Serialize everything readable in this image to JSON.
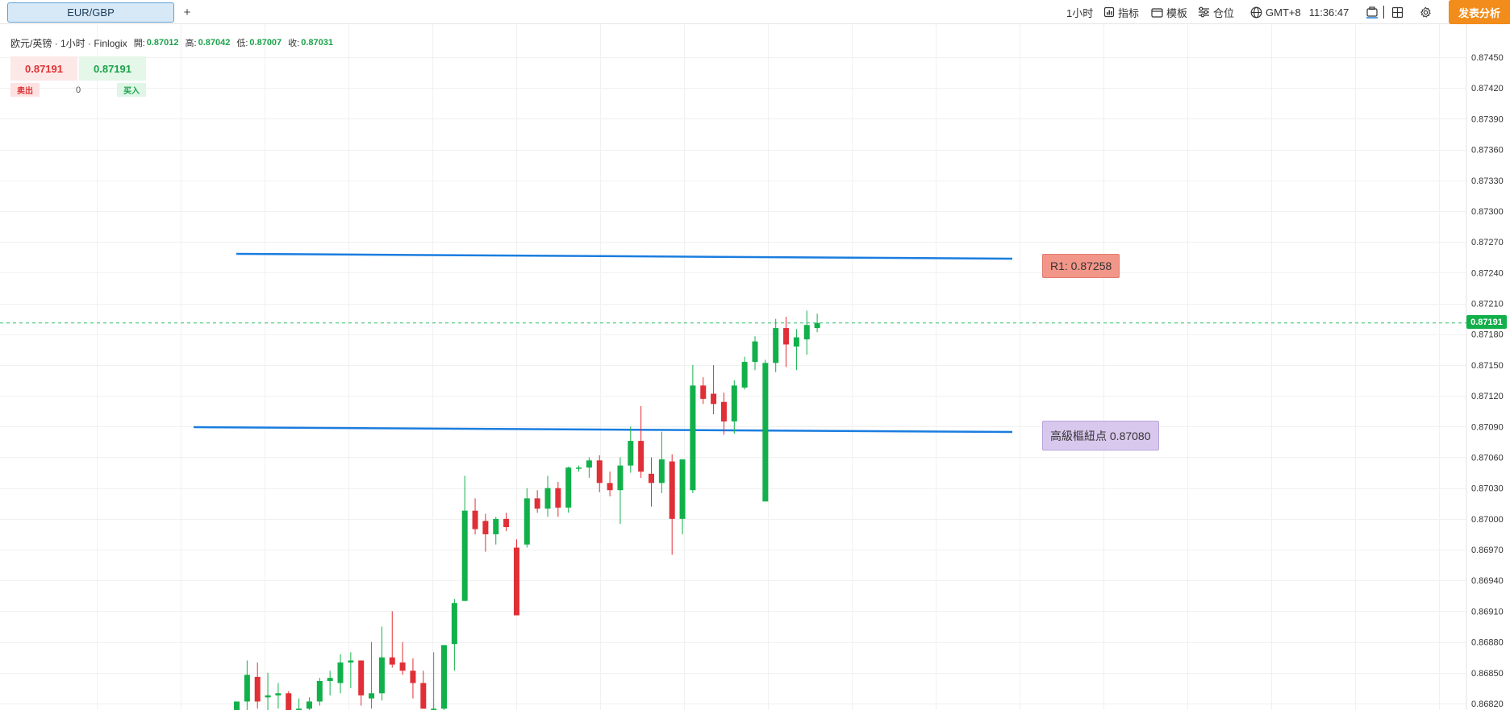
{
  "tabs": {
    "active_label": "EUR/GBP",
    "add_label": "+"
  },
  "toolbar": {
    "interval": "1小时",
    "indicators": "指标",
    "templates": "模板",
    "positions": "仓位",
    "timezone": "GMT+8",
    "clock": "11:36:47",
    "publish": "发表分析"
  },
  "info": {
    "title": "欧元/英镑 · 1小时 · Finlogix",
    "open_label": "開:",
    "open_value": "0.87012",
    "high_label": "高:",
    "high_value": "0.87042",
    "low_label": "低:",
    "low_value": "0.87007",
    "close_label": "收:",
    "close_value": "0.87031"
  },
  "trade": {
    "sell_price": "0.87191",
    "buy_price": "0.87191",
    "sell_label": "卖出",
    "buy_label": "买入",
    "quantity": "0"
  },
  "levels": {
    "r1_label": "R1: 0.87258",
    "pivot_label": "高級樞紐点 0.87080"
  },
  "current_price": "0.87191",
  "colors": {
    "up": "#12b04a",
    "down": "#e02f36",
    "level_line": "#1a7ddf",
    "r1_bg": "#f3968a",
    "pivot_bg": "#d9c8ee",
    "accent": "#f28c1a"
  },
  "chart_data": {
    "type": "candlestick",
    "y_axis_ticks": [
      "0.87450",
      "0.87420",
      "0.87390",
      "0.87360",
      "0.87330",
      "0.87300",
      "0.87270",
      "0.87240",
      "0.87210",
      "0.87180",
      "0.87150",
      "0.87120",
      "0.87090",
      "0.87060",
      "0.87030",
      "0.87000",
      "0.86970",
      "0.86940",
      "0.86910",
      "0.86880",
      "0.86850",
      "0.86820"
    ],
    "ylim": [
      0.86816,
      0.87472
    ],
    "current_price": 0.87191,
    "levels": [
      {
        "label": "R1",
        "value": 0.87258
      },
      {
        "label": "高級樞紐点",
        "value": 0.8708
      }
    ],
    "candles": [
      {
        "o": 0.86812,
        "h": 0.86822,
        "l": 0.868,
        "c": 0.86822
      },
      {
        "o": 0.86822,
        "h": 0.86862,
        "l": 0.8681,
        "c": 0.86848
      },
      {
        "o": 0.86846,
        "h": 0.8686,
        "l": 0.86815,
        "c": 0.86822
      },
      {
        "o": 0.86826,
        "h": 0.8685,
        "l": 0.8681,
        "c": 0.86828
      },
      {
        "o": 0.86828,
        "h": 0.8684,
        "l": 0.86815,
        "c": 0.8683
      },
      {
        "o": 0.8683,
        "h": 0.86832,
        "l": 0.86808,
        "c": 0.86812
      },
      {
        "o": 0.8681,
        "h": 0.86825,
        "l": 0.868,
        "c": 0.86815
      },
      {
        "o": 0.86815,
        "h": 0.86826,
        "l": 0.86805,
        "c": 0.86822
      },
      {
        "o": 0.86822,
        "h": 0.86845,
        "l": 0.86818,
        "c": 0.86842
      },
      {
        "o": 0.86842,
        "h": 0.86852,
        "l": 0.86828,
        "c": 0.86845
      },
      {
        "o": 0.8684,
        "h": 0.86868,
        "l": 0.8683,
        "c": 0.8686
      },
      {
        "o": 0.8686,
        "h": 0.8687,
        "l": 0.86835,
        "c": 0.86862
      },
      {
        "o": 0.86862,
        "h": 0.86862,
        "l": 0.86818,
        "c": 0.86828
      },
      {
        "o": 0.86825,
        "h": 0.8688,
        "l": 0.86815,
        "c": 0.8683
      },
      {
        "o": 0.8683,
        "h": 0.86895,
        "l": 0.86823,
        "c": 0.86865
      },
      {
        "o": 0.86865,
        "h": 0.8691,
        "l": 0.86855,
        "c": 0.86858
      },
      {
        "o": 0.8686,
        "h": 0.8688,
        "l": 0.86848,
        "c": 0.86852
      },
      {
        "o": 0.86852,
        "h": 0.86864,
        "l": 0.86825,
        "c": 0.8684
      },
      {
        "o": 0.8684,
        "h": 0.86852,
        "l": 0.86815,
        "c": 0.86815
      },
      {
        "o": 0.86813,
        "h": 0.8687,
        "l": 0.868,
        "c": 0.86815
      },
      {
        "o": 0.86815,
        "h": 0.86876,
        "l": 0.86805,
        "c": 0.86877
      },
      {
        "o": 0.86878,
        "h": 0.86922,
        "l": 0.86852,
        "c": 0.86918
      },
      {
        "o": 0.8692,
        "h": 0.87042,
        "l": 0.8692,
        "c": 0.87008
      },
      {
        "o": 0.87008,
        "h": 0.8702,
        "l": 0.86985,
        "c": 0.8699
      },
      {
        "o": 0.86998,
        "h": 0.87005,
        "l": 0.86968,
        "c": 0.86985
      },
      {
        "o": 0.86985,
        "h": 0.87002,
        "l": 0.86975,
        "c": 0.87
      },
      {
        "o": 0.87,
        "h": 0.87006,
        "l": 0.86988,
        "c": 0.86992
      },
      {
        "o": 0.86972,
        "h": 0.8698,
        "l": 0.86906,
        "c": 0.86906
      },
      {
        "o": 0.86975,
        "h": 0.8703,
        "l": 0.86972,
        "c": 0.8702
      },
      {
        "o": 0.8702,
        "h": 0.87028,
        "l": 0.87006,
        "c": 0.8701
      },
      {
        "o": 0.8701,
        "h": 0.87042,
        "l": 0.87002,
        "c": 0.8703
      },
      {
        "o": 0.8703,
        "h": 0.87036,
        "l": 0.87002,
        "c": 0.87011
      },
      {
        "o": 0.87011,
        "h": 0.87051,
        "l": 0.87006,
        "c": 0.8705
      },
      {
        "o": 0.8705,
        "h": 0.87052,
        "l": 0.87046,
        "c": 0.8705
      },
      {
        "o": 0.8705,
        "h": 0.8706,
        "l": 0.8704,
        "c": 0.87057
      },
      {
        "o": 0.87057,
        "h": 0.87062,
        "l": 0.87026,
        "c": 0.87035
      },
      {
        "o": 0.87035,
        "h": 0.87046,
        "l": 0.87022,
        "c": 0.87028
      },
      {
        "o": 0.87028,
        "h": 0.8706,
        "l": 0.86995,
        "c": 0.87052
      },
      {
        "o": 0.87052,
        "h": 0.8709,
        "l": 0.87045,
        "c": 0.87076
      },
      {
        "o": 0.87076,
        "h": 0.8711,
        "l": 0.8704,
        "c": 0.87046
      },
      {
        "o": 0.87044,
        "h": 0.8706,
        "l": 0.87012,
        "c": 0.87035
      },
      {
        "o": 0.87035,
        "h": 0.87085,
        "l": 0.87025,
        "c": 0.87058
      },
      {
        "o": 0.87056,
        "h": 0.87063,
        "l": 0.86965,
        "c": 0.87
      },
      {
        "o": 0.87,
        "h": 0.87058,
        "l": 0.86985,
        "c": 0.87058
      },
      {
        "o": 0.87028,
        "h": 0.8715,
        "l": 0.87025,
        "c": 0.8713
      },
      {
        "o": 0.8713,
        "h": 0.87138,
        "l": 0.87112,
        "c": 0.87117
      },
      {
        "o": 0.87122,
        "h": 0.8715,
        "l": 0.87102,
        "c": 0.87112
      },
      {
        "o": 0.87114,
        "h": 0.87123,
        "l": 0.87082,
        "c": 0.87095
      },
      {
        "o": 0.87095,
        "h": 0.87135,
        "l": 0.87083,
        "c": 0.8713
      },
      {
        "o": 0.87128,
        "h": 0.87158,
        "l": 0.87126,
        "c": 0.87153
      },
      {
        "o": 0.87153,
        "h": 0.87178,
        "l": 0.87145,
        "c": 0.87173
      },
      {
        "o": 0.87017,
        "h": 0.87155,
        "l": 0.87017,
        "c": 0.87152
      },
      {
        "o": 0.87152,
        "h": 0.87195,
        "l": 0.87143,
        "c": 0.87186
      },
      {
        "o": 0.87186,
        "h": 0.87197,
        "l": 0.87148,
        "c": 0.8717
      },
      {
        "o": 0.87168,
        "h": 0.87185,
        "l": 0.87145,
        "c": 0.87177
      },
      {
        "o": 0.87175,
        "h": 0.87203,
        "l": 0.8716,
        "c": 0.87189
      },
      {
        "o": 0.87186,
        "h": 0.872,
        "l": 0.87182,
        "c": 0.87191
      }
    ]
  }
}
